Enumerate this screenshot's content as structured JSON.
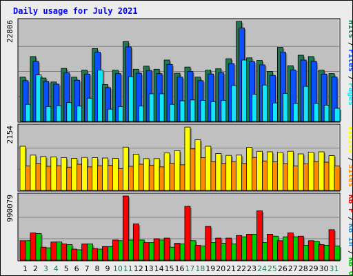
{
  "chart_data": {
    "type": "bar",
    "title": "Daily usage for July 2021",
    "colors": {
      "background": "#ececec",
      "panel": "#c0c0c0",
      "title": "#0000ff",
      "hits": "#1e7850",
      "files": "#0a50ff",
      "pages": "#14e6fa",
      "visits": "#ffff00",
      "sites": "#ff8c00",
      "kbf": "#ff0000",
      "kbin": "#2896dc",
      "kbout": "#00cc00",
      "weekend_label": "#1e7850",
      "weekday_label": "#000000"
    },
    "categories": [
      "1",
      "2",
      "3",
      "4",
      "5",
      "6",
      "7",
      "8",
      "9",
      "10",
      "11",
      "12",
      "13",
      "14",
      "15",
      "16",
      "17",
      "18",
      "19",
      "20",
      "21",
      "22",
      "23",
      "24",
      "25",
      "26",
      "27",
      "28",
      "29",
      "30",
      "31"
    ],
    "weekend_days": [
      "3",
      "4",
      "10",
      "11",
      "17",
      "18",
      "24",
      "25",
      "31"
    ],
    "panels": [
      {
        "id": "hits",
        "max_label": "22806",
        "ylim": [
          0,
          22806
        ],
        "legend": [
          {
            "name": "Hits",
            "color": "#1e7850"
          },
          {
            "name": "Files",
            "color": "#0a50ff"
          },
          {
            "name": "Pages",
            "color": "#14e6fa"
          }
        ],
        "series": [
          {
            "name": "Hits",
            "values": [
              10100,
              14800,
              9900,
              9000,
              12100,
              10100,
              11700,
              16600,
              8400,
              11700,
              18200,
              11900,
              12600,
              11900,
              14000,
              11000,
              12400,
              10100,
              11700,
              12000,
              14300,
              22800,
              14500,
              13900,
              11400,
              16900,
              12700,
              15100,
              14800,
              11700,
              10900
            ]
          },
          {
            "name": "Files",
            "values": [
              9300,
              13700,
              9100,
              8500,
              11100,
              9400,
              10800,
              15800,
              7700,
              10900,
              17000,
              11000,
              11600,
              10900,
              13000,
              10100,
              11400,
              9300,
              10800,
              11100,
              13200,
              21300,
              13600,
              12900,
              10500,
              15800,
              11700,
              14000,
              13700,
              10800,
              10100
            ]
          },
          {
            "name": "Pages",
            "values": [
              3900,
              10600,
              3400,
              3600,
              4300,
              3500,
              5300,
              11700,
              2800,
              3400,
              10200,
              3500,
              6300,
              6300,
              3900,
              4700,
              4900,
              4800,
              4500,
              4800,
              8200,
              14000,
              6200,
              8300,
              4200,
              6400,
              4100,
              8000,
              4100,
              3700,
              3000
            ]
          }
        ]
      },
      {
        "id": "visits",
        "max_label": "2154",
        "ylim": [
          0,
          2154
        ],
        "legend": [
          {
            "name": "Visits",
            "color": "#ffff00"
          },
          {
            "name": "Sites",
            "color": "#ff8c00"
          }
        ],
        "series": [
          {
            "name": "Visits",
            "values": [
              1500,
              1200,
              1150,
              1140,
              1110,
              1090,
              1120,
              1110,
              1100,
              1090,
              1470,
              1230,
              1080,
              1080,
              1270,
              1350,
              2150,
              1720,
              1500,
              1250,
              1190,
              1200,
              1460,
              1330,
              1310,
              1300,
              1330,
              1240,
              1300,
              1310,
              1180
            ]
          },
          {
            "name": "Sites",
            "values": [
              830,
              920,
              820,
              840,
              790,
              890,
              800,
              840,
              850,
              740,
              820,
              890,
              850,
              800,
              920,
              870,
              1410,
              1110,
              980,
              920,
              980,
              920,
              1120,
              1000,
              970,
              910,
              830,
              900,
              980,
              960,
              830
            ]
          }
        ]
      },
      {
        "id": "kbytes",
        "max_label": "990079",
        "ylim": [
          0,
          990079
        ],
        "legend": [
          {
            "name": "KB F",
            "color": "#ff0000"
          },
          {
            "name": "KB In",
            "color": "#2896dc"
          },
          {
            "name": "KB Out",
            "color": "#00cc00"
          }
        ],
        "series": [
          {
            "name": "KB F",
            "values": [
              300000,
              420000,
              200000,
              280000,
              250000,
              170000,
              250000,
              180000,
              210000,
              310000,
              990000,
              560000,
              270000,
              330000,
              340000,
              260000,
              830000,
              230000,
              520000,
              340000,
              340000,
              380000,
              400000,
              760000,
              400000,
              300000,
              420000,
              370000,
              300000,
              240000,
              470000
            ]
          },
          {
            "name": "KB In",
            "values": [
              0,
              0,
              0,
              0,
              0,
              0,
              0,
              0,
              0,
              0,
              0,
              0,
              0,
              0,
              0,
              0,
              0,
              0,
              0,
              0,
              0,
              0,
              0,
              0,
              0,
              0,
              0,
              0,
              0,
              0,
              0
            ]
          },
          {
            "name": "KB Out",
            "values": [
              300000,
              410000,
              190000,
              280000,
              240000,
              160000,
              250000,
              170000,
              210000,
              300000,
              310000,
              310000,
              270000,
              310000,
              200000,
              250000,
              300000,
              220000,
              270000,
              260000,
              250000,
              360000,
              400000,
              270000,
              370000,
              360000,
              360000,
              230000,
              290000,
              230000,
              220000
            ]
          }
        ]
      }
    ]
  }
}
